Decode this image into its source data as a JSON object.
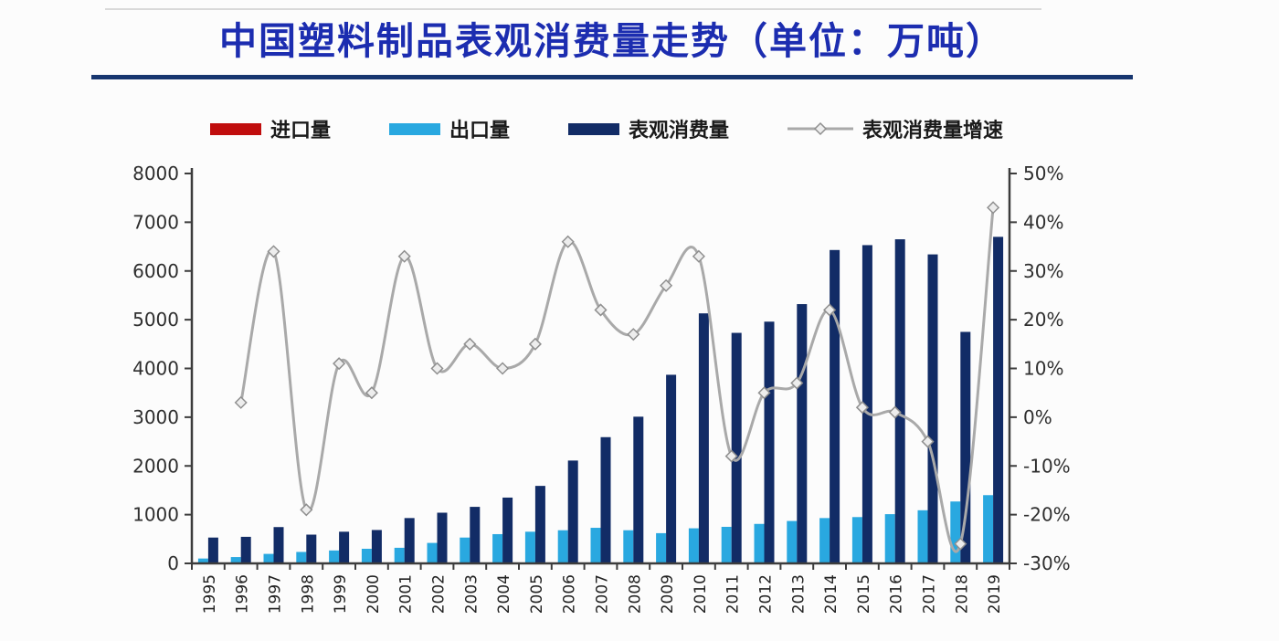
{
  "page": {
    "title": "中国塑料制品表观消费量走势（单位：万吨）"
  },
  "colors": {
    "title": "#1c2db0",
    "title_underline": "#17366f",
    "import": "#c00d0d",
    "export": "#29a8e0",
    "consumption": "#122c66",
    "growth_line": "#a9a9a9",
    "marker_fill": "#ededed",
    "marker_stroke": "#8f8f8f",
    "axis": "#3c3c3c",
    "background": "#fcfcfc"
  },
  "legend": [
    {
      "id": "import",
      "label": "进口量",
      "swatch": "bar",
      "color_key": "import"
    },
    {
      "id": "export",
      "label": "出口量",
      "swatch": "bar",
      "color_key": "export"
    },
    {
      "id": "consumption",
      "label": "表观消费量",
      "swatch": "bar",
      "color_key": "consumption"
    },
    {
      "id": "growth",
      "label": "表观消费量增速",
      "swatch": "line",
      "color_key": "growth_line"
    }
  ],
  "chart_data": {
    "type": "bar",
    "subtype": "grouped bars with secondary-axis line",
    "title": "中国塑料制品表观消费量走势（单位：万吨）",
    "xlabel": "",
    "ylabel": "",
    "grid": false,
    "legend_position": "top",
    "categories": [
      1995,
      1996,
      1997,
      1998,
      1999,
      2000,
      2001,
      2002,
      2003,
      2004,
      2005,
      2006,
      2007,
      2008,
      2009,
      2010,
      2011,
      2012,
      2013,
      2014,
      2015,
      2016,
      2017,
      2018,
      2019
    ],
    "series": [
      {
        "name": "进口量",
        "type": "bar",
        "axis": "left",
        "color_key": "import",
        "values": null,
        "note": "legend entry shown in red, but import bars are too small to be visible in the plot"
      },
      {
        "name": "出口量",
        "type": "bar",
        "axis": "left",
        "color_key": "export",
        "values": [
          100,
          130,
          195,
          235,
          265,
          300,
          320,
          420,
          530,
          600,
          650,
          680,
          730,
          680,
          620,
          720,
          750,
          810,
          870,
          930,
          950,
          1010,
          1090,
          1270,
          1400
        ]
      },
      {
        "name": "表观消费量",
        "type": "bar",
        "axis": "left",
        "color_key": "consumption",
        "values": [
          530,
          545,
          745,
          590,
          650,
          685,
          930,
          1040,
          1160,
          1350,
          1590,
          2110,
          2590,
          3010,
          3870,
          5130,
          4730,
          4960,
          5320,
          6430,
          6530,
          6650,
          6340,
          4750,
          6700
        ]
      },
      {
        "name": "表观消费量增速",
        "type": "line",
        "axis": "right",
        "unit": "%",
        "color_key": "growth_line",
        "values": [
          null,
          3,
          34,
          -19,
          11,
          5,
          33,
          10,
          15,
          10,
          15,
          36,
          22,
          17,
          27,
          33,
          -8,
          5,
          7,
          22,
          2,
          1,
          -5,
          -26,
          43
        ]
      }
    ],
    "left_axis": {
      "min": 0,
      "max": 8000,
      "tick_step": 1000,
      "tick_labels": [
        "0",
        "1000",
        "2000",
        "3000",
        "4000",
        "5000",
        "6000",
        "7000",
        "8000"
      ]
    },
    "right_axis": {
      "min": -30,
      "max": 50,
      "tick_step": 10,
      "tick_labels": [
        "50%",
        "40%",
        "30%",
        "20%",
        "10%",
        "0%",
        "-10%",
        "-20%",
        "-30%"
      ]
    }
  }
}
